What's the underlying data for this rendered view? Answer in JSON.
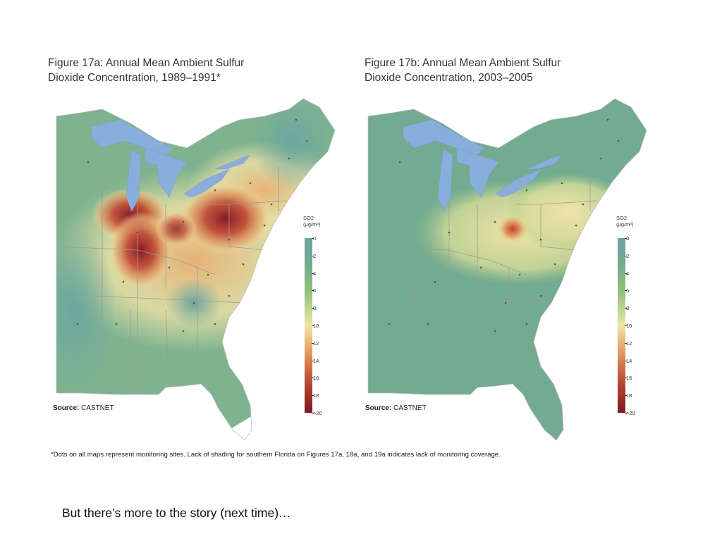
{
  "figure_a": {
    "title": "Figure 17a: Annual Mean Ambient Sulfur\nDioxide Concentration, 1989–1991*",
    "source_label": "Source:",
    "source_value": "CASTNET"
  },
  "figure_b": {
    "title": "Figure 17b: Annual Mean Ambient Sulfur\nDioxide Concentration, 2003–2005",
    "source_label": "Source:",
    "source_value": "CASTNET"
  },
  "legend": {
    "title": "SO2",
    "units": "(µg/m³)",
    "ticks": [
      "0",
      "2",
      "4",
      "6",
      "8",
      "10",
      "12",
      "14",
      "16",
      "18",
      ">20"
    ]
  },
  "footnote": "*Dots on all maps represent monitoring sites. Lack of shading for southern Florida on Figures 17a, 18a, and 19a indicates lack of monitoring coverage.",
  "caption": "But there’s more to the story (next time)…",
  "colors": {
    "low": "#6aa6a0",
    "mid": "#f0e5a8",
    "high": "#7d1a24",
    "water": "#8aaedc",
    "state_border": "#9a9a9a"
  }
}
